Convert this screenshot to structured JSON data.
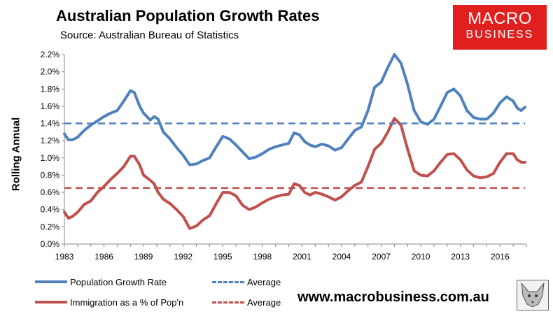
{
  "header": {
    "title": "Australian Population Growth Rates",
    "subtitle": "Source: Australian Bureau of Statistics"
  },
  "logo": {
    "line1": "MACRO",
    "line2": "BUSINESS"
  },
  "legend": {
    "series1": "Population Growth Rate",
    "series2": "Immigration as a % of Pop'n",
    "avg1": "Average",
    "avg2": "Average"
  },
  "footer": {
    "website": "www.macrobusiness.com.au"
  },
  "colors": {
    "blue": "#4f81bd",
    "red": "#c0504d",
    "logo_red": "#e0201f"
  },
  "chart_data": {
    "type": "line",
    "title": "Australian Population Growth Rates",
    "ylabel": "Rolling Annual",
    "xlabel": "",
    "xlim": [
      1983,
      2018
    ],
    "ylim": [
      0,
      2.2
    ],
    "x_ticks": [
      1983,
      1986,
      1989,
      1992,
      1995,
      1998,
      2001,
      2004,
      2007,
      2010,
      2013,
      2016
    ],
    "y_ticks": [
      "0.0%",
      "0.2%",
      "0.4%",
      "0.6%",
      "0.8%",
      "1.0%",
      "1.2%",
      "1.4%",
      "1.6%",
      "1.8%",
      "2.0%",
      "2.2%"
    ],
    "legend_position": "bottom",
    "series": [
      {
        "name": "Population Growth Rate",
        "color": "#4f81bd",
        "style": "solid",
        "points": [
          [
            1983,
            1.28
          ],
          [
            1983.3,
            1.21
          ],
          [
            1983.6,
            1.21
          ],
          [
            1984,
            1.24
          ],
          [
            1984.5,
            1.32
          ],
          [
            1985,
            1.38
          ],
          [
            1985.5,
            1.43
          ],
          [
            1986,
            1.48
          ],
          [
            1986.5,
            1.52
          ],
          [
            1987,
            1.55
          ],
          [
            1987.5,
            1.66
          ],
          [
            1988,
            1.78
          ],
          [
            1988.3,
            1.76
          ],
          [
            1988.7,
            1.6
          ],
          [
            1989,
            1.52
          ],
          [
            1989.5,
            1.44
          ],
          [
            1989.8,
            1.48
          ],
          [
            1990.1,
            1.45
          ],
          [
            1990.5,
            1.3
          ],
          [
            1991,
            1.22
          ],
          [
            1991.5,
            1.12
          ],
          [
            1992,
            1.03
          ],
          [
            1992.5,
            0.92
          ],
          [
            1993,
            0.93
          ],
          [
            1993.5,
            0.97
          ],
          [
            1994,
            1.0
          ],
          [
            1994.5,
            1.13
          ],
          [
            1995,
            1.25
          ],
          [
            1995.5,
            1.22
          ],
          [
            1996,
            1.15
          ],
          [
            1996.5,
            1.07
          ],
          [
            1997,
            0.99
          ],
          [
            1997.5,
            1.01
          ],
          [
            1998,
            1.05
          ],
          [
            1998.5,
            1.1
          ],
          [
            1999,
            1.13
          ],
          [
            1999.5,
            1.15
          ],
          [
            2000,
            1.17
          ],
          [
            2000.4,
            1.29
          ],
          [
            2000.8,
            1.27
          ],
          [
            2001.2,
            1.19
          ],
          [
            2001.6,
            1.15
          ],
          [
            2002,
            1.13
          ],
          [
            2002.5,
            1.16
          ],
          [
            2003,
            1.14
          ],
          [
            2003.5,
            1.09
          ],
          [
            2004,
            1.12
          ],
          [
            2004.5,
            1.22
          ],
          [
            2005,
            1.32
          ],
          [
            2005.5,
            1.36
          ],
          [
            2006,
            1.55
          ],
          [
            2006.5,
            1.82
          ],
          [
            2007,
            1.88
          ],
          [
            2007.5,
            2.05
          ],
          [
            2008,
            2.2
          ],
          [
            2008.5,
            2.1
          ],
          [
            2009,
            1.85
          ],
          [
            2009.5,
            1.55
          ],
          [
            2010,
            1.42
          ],
          [
            2010.5,
            1.39
          ],
          [
            2011,
            1.45
          ],
          [
            2011.5,
            1.6
          ],
          [
            2012,
            1.76
          ],
          [
            2012.5,
            1.8
          ],
          [
            2013,
            1.72
          ],
          [
            2013.5,
            1.55
          ],
          [
            2014,
            1.47
          ],
          [
            2014.5,
            1.45
          ],
          [
            2015,
            1.45
          ],
          [
            2015.5,
            1.52
          ],
          [
            2016,
            1.64
          ],
          [
            2016.5,
            1.71
          ],
          [
            2017,
            1.66
          ],
          [
            2017.3,
            1.58
          ],
          [
            2017.6,
            1.55
          ],
          [
            2017.9,
            1.59
          ]
        ]
      },
      {
        "name": "Immigration as a % of Pop'n",
        "color": "#c0504d",
        "style": "solid",
        "points": [
          [
            1983,
            0.37
          ],
          [
            1983.3,
            0.3
          ],
          [
            1983.6,
            0.32
          ],
          [
            1984,
            0.37
          ],
          [
            1984.5,
            0.46
          ],
          [
            1985,
            0.5
          ],
          [
            1985.5,
            0.6
          ],
          [
            1986,
            0.67
          ],
          [
            1986.5,
            0.75
          ],
          [
            1987,
            0.82
          ],
          [
            1987.5,
            0.9
          ],
          [
            1988,
            1.02
          ],
          [
            1988.3,
            1.02
          ],
          [
            1988.7,
            0.92
          ],
          [
            1989,
            0.8
          ],
          [
            1989.5,
            0.74
          ],
          [
            1989.8,
            0.7
          ],
          [
            1990.1,
            0.6
          ],
          [
            1990.5,
            0.52
          ],
          [
            1991,
            0.47
          ],
          [
            1991.5,
            0.4
          ],
          [
            1992,
            0.32
          ],
          [
            1992.5,
            0.18
          ],
          [
            1993,
            0.21
          ],
          [
            1993.5,
            0.28
          ],
          [
            1994,
            0.33
          ],
          [
            1994.5,
            0.47
          ],
          [
            1995,
            0.6
          ],
          [
            1995.5,
            0.6
          ],
          [
            1996,
            0.56
          ],
          [
            1996.5,
            0.45
          ],
          [
            1997,
            0.4
          ],
          [
            1997.5,
            0.43
          ],
          [
            1998,
            0.48
          ],
          [
            1998.5,
            0.52
          ],
          [
            1999,
            0.55
          ],
          [
            1999.5,
            0.57
          ],
          [
            2000,
            0.58
          ],
          [
            2000.4,
            0.7
          ],
          [
            2000.8,
            0.68
          ],
          [
            2001.2,
            0.6
          ],
          [
            2001.6,
            0.57
          ],
          [
            2002,
            0.6
          ],
          [
            2002.5,
            0.58
          ],
          [
            2003,
            0.55
          ],
          [
            2003.5,
            0.51
          ],
          [
            2004,
            0.55
          ],
          [
            2004.5,
            0.62
          ],
          [
            2005,
            0.68
          ],
          [
            2005.5,
            0.72
          ],
          [
            2006,
            0.9
          ],
          [
            2006.5,
            1.1
          ],
          [
            2007,
            1.17
          ],
          [
            2007.5,
            1.3
          ],
          [
            2008,
            1.46
          ],
          [
            2008.5,
            1.38
          ],
          [
            2009,
            1.1
          ],
          [
            2009.5,
            0.85
          ],
          [
            2010,
            0.8
          ],
          [
            2010.5,
            0.79
          ],
          [
            2011,
            0.85
          ],
          [
            2011.5,
            0.95
          ],
          [
            2012,
            1.04
          ],
          [
            2012.5,
            1.05
          ],
          [
            2013,
            0.98
          ],
          [
            2013.5,
            0.86
          ],
          [
            2014,
            0.79
          ],
          [
            2014.5,
            0.77
          ],
          [
            2015,
            0.78
          ],
          [
            2015.5,
            0.82
          ],
          [
            2016,
            0.95
          ],
          [
            2016.5,
            1.05
          ],
          [
            2017,
            1.05
          ],
          [
            2017.3,
            0.98
          ],
          [
            2017.6,
            0.95
          ],
          [
            2017.9,
            0.95
          ]
        ]
      },
      {
        "name": "Average",
        "color": "#4f81bd",
        "style": "dashed",
        "points": [
          [
            1983,
            1.4
          ],
          [
            2017.9,
            1.4
          ]
        ]
      },
      {
        "name": "Average",
        "color": "#c0504d",
        "style": "dashed",
        "points": [
          [
            1983,
            0.65
          ],
          [
            2017.9,
            0.65
          ]
        ]
      }
    ]
  }
}
